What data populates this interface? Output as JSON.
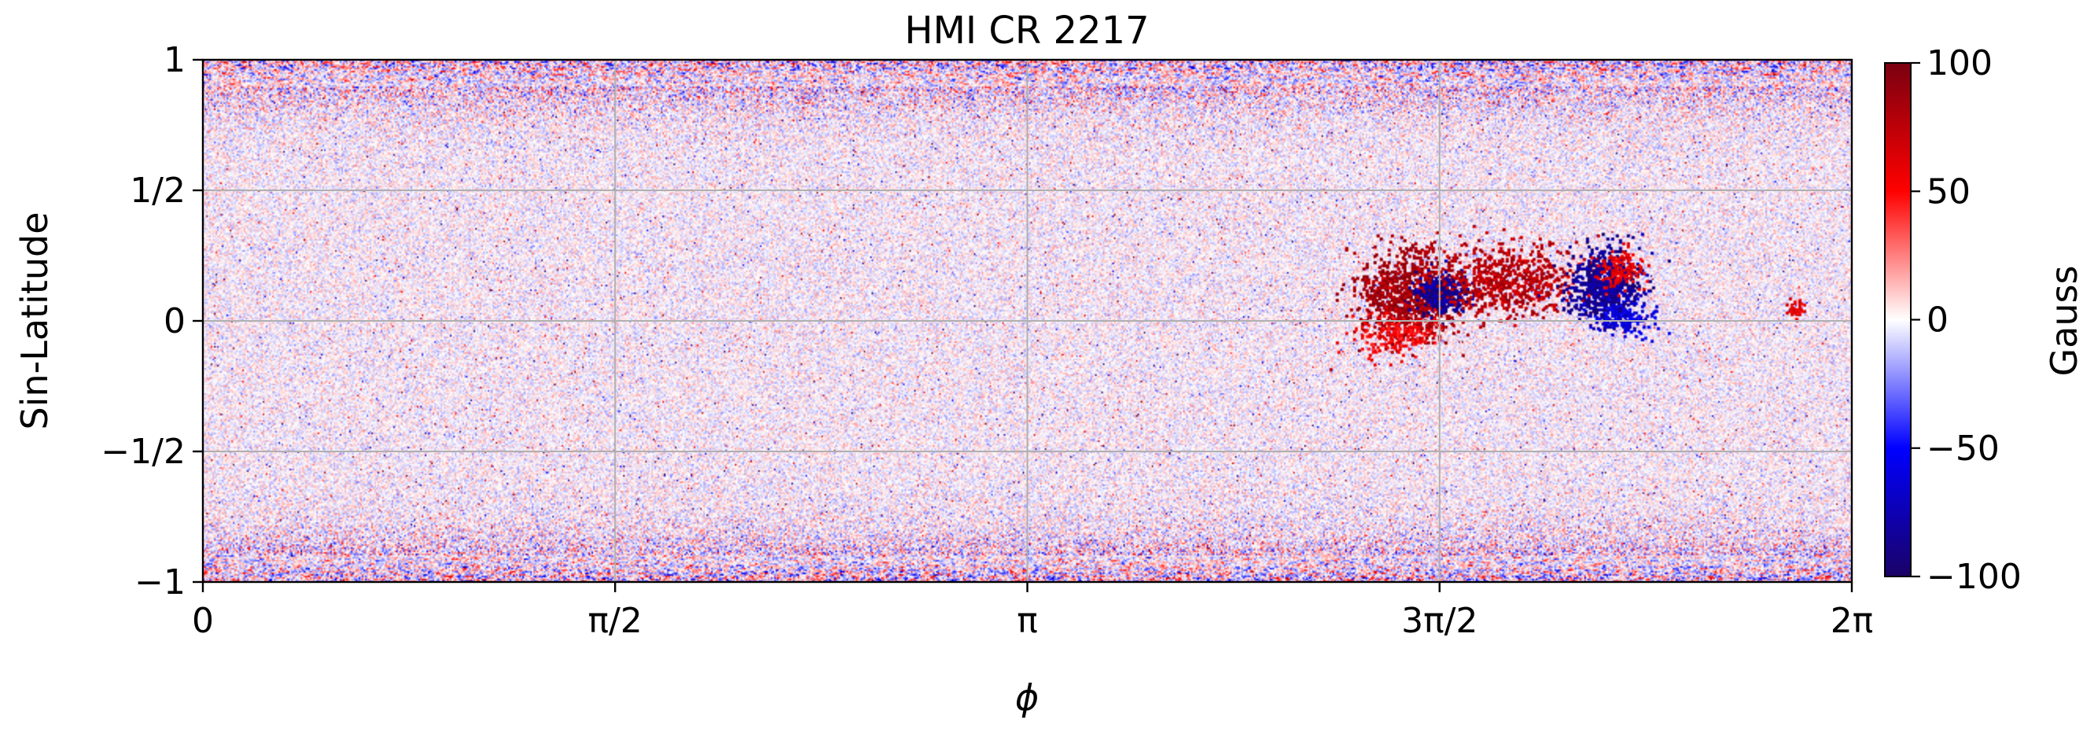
{
  "chart_data": {
    "type": "heatmap",
    "title": "HMI CR 2217",
    "xlabel": "ϕ",
    "ylabel": "Sin-Latitude",
    "colorbar_label": "Gauss",
    "colormap": "seismic",
    "colormap_stops": [
      "#1a0266",
      "#0000ff",
      "#ffffff",
      "#ff0000",
      "#7a0010"
    ],
    "clim": [
      -100,
      100
    ],
    "xlim": [
      0,
      6.2832
    ],
    "ylim": [
      -1,
      1
    ],
    "grid": true,
    "x_ticks": [
      {
        "value": 0,
        "label": "0"
      },
      {
        "value": 1.5708,
        "label": "π/2"
      },
      {
        "value": 3.1416,
        "label": "π"
      },
      {
        "value": 4.7124,
        "label": "3π/2"
      },
      {
        "value": 6.2832,
        "label": "2π"
      }
    ],
    "y_ticks": [
      {
        "value": 1,
        "label": "1"
      },
      {
        "value": 0.5,
        "label": "1/2"
      },
      {
        "value": 0,
        "label": "0"
      },
      {
        "value": -0.5,
        "label": "−1/2"
      },
      {
        "value": -1,
        "label": "−1"
      }
    ],
    "colorbar_ticks": [
      {
        "value": 100,
        "label": "100"
      },
      {
        "value": 50,
        "label": "50"
      },
      {
        "value": 0,
        "label": "0"
      },
      {
        "value": -50,
        "label": "−50"
      },
      {
        "value": -100,
        "label": "−100"
      }
    ],
    "features": [
      {
        "phi": 4.58,
        "sinlat": 0.1,
        "field": 100,
        "phi_spread": 0.1,
        "sinlat_spread": 0.09,
        "density": 140
      },
      {
        "phi": 4.72,
        "sinlat": 0.11,
        "field": -100,
        "phi_spread": 0.05,
        "sinlat_spread": 0.04,
        "density": 55
      },
      {
        "phi": 4.97,
        "sinlat": 0.16,
        "field": 90,
        "phi_spread": 0.13,
        "sinlat_spread": 0.07,
        "density": 110
      },
      {
        "phi": 5.34,
        "sinlat": 0.13,
        "field": -100,
        "phi_spread": 0.07,
        "sinlat_spread": 0.07,
        "density": 120
      },
      {
        "phi": 5.4,
        "sinlat": 0.2,
        "field": 70,
        "phi_spread": 0.04,
        "sinlat_spread": 0.04,
        "density": 25
      },
      {
        "phi": 4.55,
        "sinlat": -0.05,
        "field": 60,
        "phi_spread": 0.08,
        "sinlat_spread": 0.04,
        "density": 30
      },
      {
        "phi": 5.41,
        "sinlat": 0.02,
        "field": -70,
        "phi_spread": 0.06,
        "sinlat_spread": 0.04,
        "density": 25
      },
      {
        "phi": 6.07,
        "sinlat": 0.04,
        "field": 70,
        "phi_spread": 0.02,
        "sinlat_spread": 0.02,
        "density": 6
      }
    ]
  }
}
